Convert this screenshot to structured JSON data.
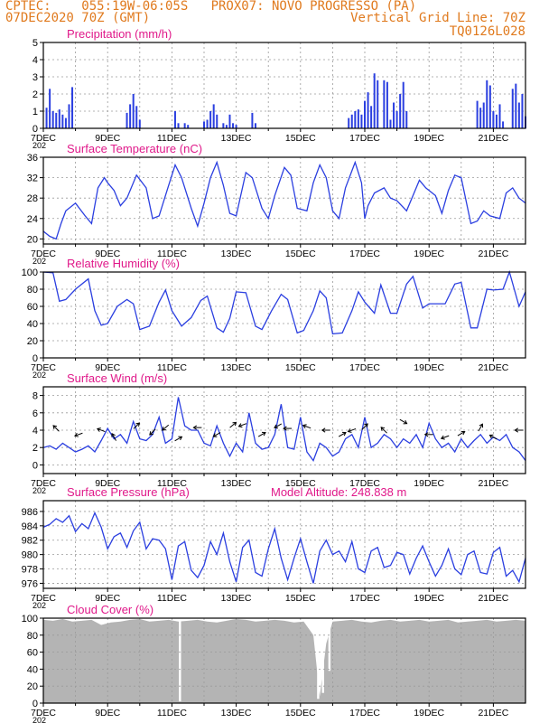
{
  "header": {
    "line1_left": "CPTEC:    055:19W-06:05S   PROX07: NOVO PROGRESSO (PA)",
    "line2_left": "07DEC2020 70Z (GMT)",
    "line2_right": "Vertical Grid Line: 70Z",
    "line3_right": "TQ0126L028"
  },
  "x_ticks": [
    "7DEC",
    "9DEC",
    "11DEC",
    "13DEC",
    "15DEC",
    "17DEC",
    "19DEC",
    "21DEC"
  ],
  "x_year": "202",
  "colors": {
    "header": "#e07a1e",
    "title": "#e0198a",
    "series": "#2b3fe0",
    "cloud": "#b4b4b4"
  },
  "chart_data": [
    {
      "type": "bar",
      "title": "Precipitation (mm/h)",
      "ylim": [
        0,
        5
      ],
      "yticks": [
        0,
        1,
        2,
        3,
        4,
        5
      ],
      "x": [
        0.1,
        0.2,
        0.3,
        0.4,
        0.5,
        0.6,
        0.7,
        0.8,
        0.9,
        2.6,
        2.7,
        2.8,
        2.9,
        3.0,
        4.1,
        4.2,
        4.4,
        4.5,
        5.0,
        5.1,
        5.2,
        5.3,
        5.4,
        5.6,
        5.7,
        5.8,
        5.9,
        6.0,
        6.5,
        6.6,
        9.5,
        9.6,
        9.7,
        9.8,
        9.9,
        10.0,
        10.1,
        10.2,
        10.3,
        10.4,
        10.6,
        10.7,
        10.8,
        10.9,
        11.0,
        11.1,
        11.2,
        11.3,
        13.5,
        13.6,
        13.7,
        13.8,
        13.9,
        14.0,
        14.1,
        14.2,
        14.3,
        14.6,
        14.7,
        14.8,
        14.9,
        15.0
      ],
      "values": [
        1.2,
        2.3,
        1.0,
        0.9,
        1.1,
        0.8,
        0.6,
        1.4,
        2.4,
        0.9,
        1.4,
        2.0,
        1.3,
        0.5,
        1.0,
        0.3,
        0.3,
        0.2,
        0.4,
        0.5,
        1.0,
        1.4,
        0.8,
        0.3,
        0.2,
        0.8,
        0.3,
        0.2,
        0.9,
        0.3,
        0.6,
        0.8,
        1.0,
        1.1,
        0.8,
        1.6,
        2.1,
        1.3,
        3.2,
        2.8,
        2.8,
        2.7,
        0.5,
        1.5,
        1.0,
        2.0,
        2.7,
        1.0,
        1.6,
        1.2,
        1.5,
        2.8,
        2.5,
        1.0,
        0.8,
        1.4,
        0.4,
        2.3,
        2.6,
        1.5,
        2.0,
        0.7
      ]
    },
    {
      "type": "line",
      "title": "Surface Temperature (nC)",
      "ylim": [
        19,
        36
      ],
      "yticks": [
        20,
        24,
        28,
        32,
        36
      ],
      "x": [
        0,
        0.2,
        0.4,
        0.55,
        0.7,
        1.0,
        1.3,
        1.5,
        1.7,
        1.9,
        2.0,
        2.2,
        2.4,
        2.6,
        2.9,
        3.2,
        3.4,
        3.6,
        3.9,
        4.1,
        4.3,
        4.6,
        4.8,
        5.0,
        5.2,
        5.4,
        5.6,
        5.8,
        6.0,
        6.3,
        6.5,
        6.8,
        7.0,
        7.2,
        7.5,
        7.7,
        7.9,
        8.2,
        8.4,
        8.6,
        8.8,
        9.0,
        9.2,
        9.4,
        9.7,
        9.9,
        10.0,
        10.1,
        10.3,
        10.6,
        10.8,
        11.0,
        11.3,
        11.5,
        11.7,
        11.9,
        12.2,
        12.4,
        12.6,
        12.8,
        13.0,
        13.3,
        13.5,
        13.7,
        13.9,
        14.2,
        14.4,
        14.6,
        14.8,
        15.0
      ],
      "values": [
        21.5,
        20.5,
        20.0,
        23.0,
        25.5,
        27.0,
        24.5,
        23.0,
        30.0,
        32.0,
        31.0,
        29.5,
        26.5,
        28.0,
        32.5,
        30.0,
        24.0,
        24.5,
        30.5,
        34.5,
        32.0,
        26.0,
        22.5,
        27.0,
        32.0,
        35.0,
        30.5,
        25.0,
        24.5,
        33.0,
        32.0,
        26.0,
        24.0,
        28.5,
        34.0,
        32.5,
        26.0,
        25.5,
        31.0,
        34.5,
        32.0,
        25.5,
        24.0,
        30.0,
        35.0,
        31.0,
        24.0,
        26.5,
        29.0,
        30.0,
        28.0,
        27.5,
        25.5,
        28.5,
        31.5,
        30.0,
        28.5,
        25.0,
        29.5,
        32.5,
        32.0,
        23.0,
        23.5,
        25.5,
        24.5,
        24.0,
        29.0,
        30.0,
        28.0,
        27.0
      ]
    },
    {
      "type": "line",
      "title": "Relative Humidity (%)",
      "ylim": [
        0,
        100
      ],
      "yticks": [
        0,
        20,
        40,
        60,
        80,
        100
      ],
      "x": [
        0,
        0.3,
        0.5,
        0.7,
        1.0,
        1.4,
        1.6,
        1.8,
        2.0,
        2.3,
        2.6,
        2.8,
        3.0,
        3.3,
        3.6,
        3.8,
        4.0,
        4.3,
        4.6,
        4.9,
        5.1,
        5.4,
        5.6,
        5.8,
        6.0,
        6.3,
        6.6,
        6.8,
        7.1,
        7.4,
        7.6,
        7.9,
        8.1,
        8.4,
        8.6,
        8.8,
        9.0,
        9.3,
        9.6,
        9.8,
        10.0,
        10.3,
        10.5,
        10.8,
        11.0,
        11.3,
        11.5,
        11.8,
        12.0,
        12.3,
        12.5,
        12.8,
        13.0,
        13.3,
        13.5,
        13.8,
        14.0,
        14.3,
        14.5,
        14.8,
        15.0
      ],
      "values": [
        100,
        99,
        66,
        68,
        80,
        92,
        55,
        38,
        40,
        60,
        68,
        63,
        33,
        37,
        65,
        79,
        55,
        37,
        47,
        67,
        72,
        35,
        30,
        46,
        77,
        76,
        37,
        33,
        55,
        74,
        68,
        29,
        32,
        55,
        78,
        70,
        28,
        29,
        55,
        77,
        65,
        52,
        85,
        52,
        52,
        86,
        95,
        58,
        63,
        63,
        63,
        86,
        88,
        35,
        35,
        80,
        79,
        80,
        100,
        60,
        77
      ]
    },
    {
      "type": "line",
      "title": "Surface Wind (m/s)",
      "ylim": [
        -1,
        9
      ],
      "yticks": [
        0,
        2,
        4,
        6,
        8
      ],
      "x": [
        0,
        0.2,
        0.4,
        0.6,
        0.8,
        1.0,
        1.2,
        1.4,
        1.6,
        1.8,
        2.0,
        2.2,
        2.4,
        2.6,
        2.8,
        3.0,
        3.2,
        3.4,
        3.6,
        3.8,
        4.0,
        4.2,
        4.4,
        4.6,
        4.8,
        5.0,
        5.2,
        5.4,
        5.6,
        5.8,
        6.0,
        6.2,
        6.4,
        6.6,
        6.8,
        7.0,
        7.2,
        7.4,
        7.6,
        7.8,
        8.0,
        8.2,
        8.4,
        8.6,
        8.8,
        9.0,
        9.2,
        9.4,
        9.6,
        9.8,
        10.0,
        10.2,
        10.4,
        10.6,
        10.8,
        11.0,
        11.2,
        11.4,
        11.6,
        11.8,
        12.0,
        12.2,
        12.4,
        12.6,
        12.8,
        13.0,
        13.2,
        13.4,
        13.6,
        13.8,
        14.0,
        14.2,
        14.4,
        14.6,
        14.8,
        15.0
      ],
      "values": [
        2.0,
        2.2,
        1.8,
        2.5,
        2.0,
        1.5,
        1.8,
        2.2,
        1.5,
        2.8,
        4.2,
        3.0,
        3.5,
        2.5,
        5.0,
        3.0,
        2.8,
        3.5,
        5.5,
        2.5,
        3.0,
        7.8,
        4.5,
        4.0,
        4.0,
        2.5,
        2.2,
        4.5,
        2.5,
        1.0,
        2.5,
        1.5,
        6.0,
        2.5,
        1.8,
        2.0,
        3.5,
        7.0,
        2.0,
        1.8,
        5.5,
        1.5,
        0.5,
        2.5,
        2.0,
        1.0,
        1.5,
        3.0,
        3.5,
        2.0,
        5.5,
        2.0,
        2.5,
        3.5,
        3.0,
        2.0,
        3.0,
        2.5,
        3.5,
        2.0,
        4.8,
        3.0,
        2.0,
        2.5,
        1.5,
        3.0,
        2.0,
        2.8,
        3.5,
        2.5,
        3.2,
        2.8,
        3.5,
        2.0,
        1.5,
        0.5
      ],
      "arrows": [
        {
          "day": 0.4,
          "speed": 4.2,
          "dir_deg": 135
        },
        {
          "day": 1.1,
          "speed": 3.5,
          "dir_deg": 200
        },
        {
          "day": 1.8,
          "speed": 4.0,
          "dir_deg": 160
        },
        {
          "day": 2.2,
          "speed": 3.2,
          "dir_deg": 120
        },
        {
          "day": 2.9,
          "speed": 4.5,
          "dir_deg": 45
        },
        {
          "day": 3.4,
          "speed": 3.8,
          "dir_deg": 225
        },
        {
          "day": 3.8,
          "speed": 4.3,
          "dir_deg": 220
        },
        {
          "day": 4.2,
          "speed": 3.0,
          "dir_deg": 30
        },
        {
          "day": 4.8,
          "speed": 4.3,
          "dir_deg": 180
        },
        {
          "day": 5.4,
          "speed": 3.5,
          "dir_deg": 210
        },
        {
          "day": 5.9,
          "speed": 4.6,
          "dir_deg": 40
        },
        {
          "day": 6.2,
          "speed": 4.6,
          "dir_deg": 200
        },
        {
          "day": 6.8,
          "speed": 3.5,
          "dir_deg": 30
        },
        {
          "day": 7.3,
          "speed": 4.5,
          "dir_deg": 210
        },
        {
          "day": 7.6,
          "speed": 4.2,
          "dir_deg": 180
        },
        {
          "day": 8.2,
          "speed": 4.4,
          "dir_deg": 160
        },
        {
          "day": 8.8,
          "speed": 4.0,
          "dir_deg": 180
        },
        {
          "day": 9.3,
          "speed": 3.5,
          "dir_deg": 30
        },
        {
          "day": 9.6,
          "speed": 4.0,
          "dir_deg": 200
        },
        {
          "day": 10.0,
          "speed": 4.4,
          "dir_deg": 45
        },
        {
          "day": 10.6,
          "speed": 4.0,
          "dir_deg": 135
        },
        {
          "day": 11.2,
          "speed": 5.0,
          "dir_deg": 330
        },
        {
          "day": 12.0,
          "speed": 3.5,
          "dir_deg": 180
        },
        {
          "day": 12.5,
          "speed": 3.2,
          "dir_deg": 200
        },
        {
          "day": 13.0,
          "speed": 3.6,
          "dir_deg": 30
        },
        {
          "day": 13.6,
          "speed": 4.3,
          "dir_deg": 60
        },
        {
          "day": 14.0,
          "speed": 3.2,
          "dir_deg": 150
        },
        {
          "day": 14.8,
          "speed": 4.0,
          "dir_deg": 180
        }
      ]
    },
    {
      "type": "line",
      "title": "Surface Pressure (hPa)",
      "annotation": "Model Altitude: 248.838  m",
      "ylim": [
        975.3,
        987.5
      ],
      "yticks": [
        976,
        978,
        980,
        982,
        984,
        986
      ],
      "x": [
        0,
        0.2,
        0.4,
        0.6,
        0.8,
        1.0,
        1.2,
        1.4,
        1.6,
        1.8,
        2.0,
        2.2,
        2.4,
        2.6,
        2.8,
        3.0,
        3.2,
        3.4,
        3.6,
        3.8,
        4.0,
        4.2,
        4.4,
        4.6,
        4.8,
        5.0,
        5.2,
        5.4,
        5.6,
        5.8,
        6.0,
        6.2,
        6.4,
        6.6,
        6.8,
        7.0,
        7.2,
        7.4,
        7.6,
        7.8,
        8.0,
        8.2,
        8.4,
        8.6,
        8.8,
        9.0,
        9.2,
        9.4,
        9.6,
        9.8,
        10.0,
        10.2,
        10.4,
        10.6,
        10.8,
        11.0,
        11.2,
        11.4,
        11.6,
        11.8,
        12.0,
        12.2,
        12.4,
        12.6,
        12.8,
        13.0,
        13.2,
        13.4,
        13.6,
        13.8,
        14.0,
        14.2,
        14.4,
        14.6,
        14.8,
        15.0
      ],
      "values": [
        983.8,
        984.2,
        985.0,
        984.5,
        985.4,
        983.2,
        984.3,
        983.6,
        985.8,
        983.8,
        980.8,
        982.5,
        983.0,
        981.0,
        983.3,
        984.5,
        980.8,
        982.2,
        982.0,
        980.8,
        976.5,
        981.2,
        981.8,
        977.8,
        976.8,
        978.5,
        981.8,
        980.0,
        983.0,
        979.0,
        976.2,
        981.0,
        982.0,
        977.5,
        977.0,
        980.8,
        983.6,
        979.5,
        976.5,
        979.5,
        982.2,
        979.0,
        976.0,
        980.5,
        982.0,
        980.0,
        980.5,
        979.0,
        981.8,
        978.0,
        977.5,
        980.5,
        981.0,
        978.2,
        978.5,
        980.3,
        980.0,
        977.3,
        979.5,
        981.2,
        979.0,
        977.0,
        978.5,
        980.8,
        978.0,
        977.2,
        980.0,
        980.5,
        977.5,
        977.3,
        980.3,
        981.0,
        977.0,
        977.8,
        976.2,
        979.5
      ]
    },
    {
      "type": "area",
      "title": "Cloud Cover (%)",
      "ylim": [
        0,
        100
      ],
      "yticks": [
        0,
        20,
        40,
        60,
        80,
        100
      ],
      "x": [
        0,
        0.3,
        0.6,
        0.9,
        1.2,
        1.5,
        1.8,
        2.1,
        2.4,
        2.7,
        3.0,
        3.3,
        3.6,
        3.9,
        4.2,
        4.5,
        4.8,
        5.1,
        5.4,
        5.7,
        6.0,
        6.3,
        6.6,
        6.9,
        7.2,
        7.5,
        7.8,
        8.1,
        8.4,
        8.6,
        8.8,
        9.0,
        9.3,
        9.6,
        9.9,
        10.2,
        10.5,
        10.8,
        11.1,
        11.4,
        11.7,
        12.0,
        12.3,
        12.6,
        12.9,
        13.2,
        13.5,
        13.8,
        14.1,
        14.4,
        14.7,
        15.0
      ],
      "values": [
        98,
        97,
        99,
        96,
        97,
        98,
        92,
        95,
        96,
        98,
        99,
        96,
        97,
        98,
        96,
        97,
        98,
        96,
        95,
        97,
        99,
        98,
        96,
        97,
        98,
        97,
        95,
        96,
        80,
        8,
        70,
        96,
        97,
        98,
        96,
        95,
        97,
        98,
        96,
        97,
        98,
        96,
        97,
        98,
        95,
        96,
        97,
        98,
        96,
        97,
        98,
        97
      ],
      "dips": [
        {
          "day": 4.25,
          "value": 2
        },
        {
          "day": 8.55,
          "value": 5
        },
        {
          "day": 8.7,
          "value": 12
        },
        {
          "day": 8.9,
          "value": 38
        }
      ]
    }
  ]
}
